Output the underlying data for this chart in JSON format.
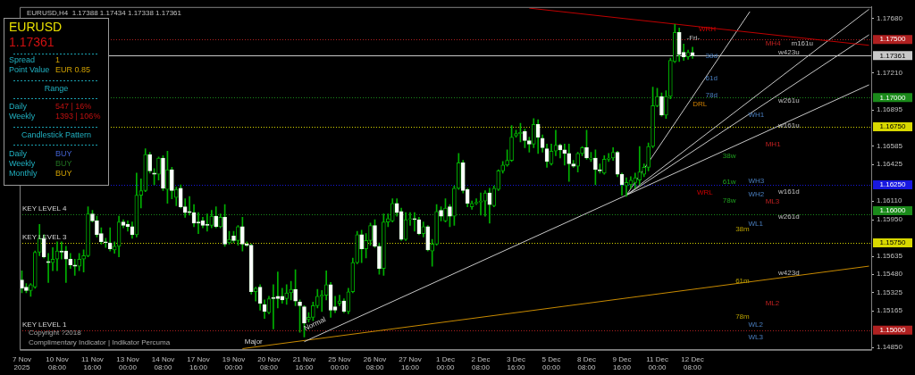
{
  "chart_data": {
    "type": "candlestick",
    "title": "EURUSD,H4  1.17388 1.17434 1.17338 1.17361",
    "categories": [
      "7 Nov 2025",
      null,
      null,
      null,
      null,
      null,
      null,
      null,
      "10 Nov 08:00",
      null,
      null,
      null,
      null,
      null,
      null,
      null,
      "11 Nov 16:00",
      null,
      null,
      null,
      null,
      null,
      null,
      null,
      "13 Nov 00:00",
      null,
      null,
      null,
      null,
      null,
      null,
      null,
      "14 Nov 08:00",
      null,
      null,
      null,
      null,
      null,
      null,
      null,
      "17 Nov 16:00",
      null,
      null,
      null,
      null,
      null,
      null,
      null,
      "19 Nov 00:00",
      null,
      null,
      null,
      null,
      null,
      null,
      null,
      "20 Nov 08:00",
      null,
      null,
      null,
      null,
      null,
      null,
      null,
      "21 Nov 16:00",
      null,
      null,
      null,
      null,
      null,
      null,
      null,
      "25 Nov 00:00",
      null,
      null,
      null,
      null,
      null,
      null,
      null,
      "26 Nov 08:00",
      null,
      null,
      null,
      null,
      null,
      null,
      null,
      "27 Nov 16:00",
      null,
      null,
      null,
      null,
      null,
      null,
      null,
      "1 Dec 00:00",
      null,
      null,
      null,
      null,
      null,
      null,
      null,
      "2 Dec 08:00",
      null,
      null,
      null,
      null,
      null,
      null,
      null,
      "3 Dec 16:00",
      null,
      null,
      null,
      null,
      null,
      null,
      null,
      "5 Dec 00:00",
      null,
      null,
      null,
      null,
      null,
      null,
      null,
      "8 Dec 08:00",
      null,
      null,
      null,
      null,
      null,
      null,
      null,
      "9 Dec 16:00",
      null,
      null,
      null,
      null,
      null,
      null,
      null,
      "11 Dec 00:00",
      null,
      null,
      null,
      null,
      null,
      null,
      null,
      "12 Dec 08:00",
      null,
      null,
      null,
      null,
      null,
      null,
      null,
      null,
      null,
      null,
      null,
      null,
      null,
      null,
      null,
      null,
      null,
      null,
      null,
      null,
      null,
      null,
      null,
      null,
      null,
      null,
      null,
      null,
      null,
      null,
      null,
      null,
      null,
      null,
      null,
      null,
      null,
      null,
      null,
      null
    ],
    "ohlc": [
      [
        1.1543,
        1.1551,
        1.1532,
        1.1536
      ],
      [
        1.1537,
        1.154,
        1.1532,
        1.1534
      ],
      [
        1.1534,
        1.154,
        1.1529,
        1.1539
      ],
      [
        1.1537,
        1.1568,
        1.1536,
        1.1567
      ],
      [
        1.1567,
        1.1591,
        1.1564,
        1.1579
      ],
      [
        1.1579,
        1.1582,
        1.1562,
        1.1563
      ],
      [
        1.1559,
        1.1566,
        1.1541,
        1.1558
      ],
      [
        1.1558,
        1.1571,
        1.1551,
        1.1561
      ],
      [
        1.1561,
        1.1576,
        1.1551,
        1.1568
      ],
      [
        1.1568,
        1.1576,
        1.1561,
        1.1567
      ],
      [
        1.1568,
        1.1572,
        1.1541,
        1.1561
      ],
      [
        1.1561,
        1.1566,
        1.1553,
        1.1556
      ],
      [
        1.1556,
        1.1561,
        1.1547,
        1.1555
      ],
      [
        1.1555,
        1.1566,
        1.1551,
        1.1561
      ],
      [
        1.1561,
        1.1569,
        1.155,
        1.1564
      ],
      [
        1.1564,
        1.1606,
        1.1563,
        1.16
      ],
      [
        1.16,
        1.1603,
        1.1593,
        1.1594
      ],
      [
        1.1594,
        1.1598,
        1.158,
        1.1582
      ],
      [
        1.1583,
        1.1588,
        1.1574,
        1.1576
      ],
      [
        1.1576,
        1.1579,
        1.1571,
        1.1575
      ],
      [
        1.1575,
        1.1588,
        1.1568,
        1.157
      ],
      [
        1.1569,
        1.1576,
        1.1566,
        1.1572
      ],
      [
        1.1572,
        1.1598,
        1.1563,
        1.1593
      ],
      [
        1.1593,
        1.1595,
        1.1588,
        1.159
      ],
      [
        1.1591,
        1.1594,
        1.1585,
        1.1589
      ],
      [
        1.1589,
        1.1593,
        1.1579,
        1.1582
      ],
      [
        1.1582,
        1.1635,
        1.158,
        1.1616
      ],
      [
        1.1616,
        1.163,
        1.1605,
        1.162
      ],
      [
        1.162,
        1.1656,
        1.1619,
        1.1651
      ],
      [
        1.1651,
        1.1653,
        1.1635,
        1.1637
      ],
      [
        1.1635,
        1.1639,
        1.1625,
        1.1634
      ],
      [
        1.1634,
        1.1649,
        1.1629,
        1.1648
      ],
      [
        1.1648,
        1.165,
        1.162,
        1.1622
      ],
      [
        1.1621,
        1.1654,
        1.1609,
        1.1638
      ],
      [
        1.1638,
        1.164,
        1.1613,
        1.162
      ],
      [
        1.1614,
        1.1623,
        1.1607,
        1.1621
      ],
      [
        1.1622,
        1.1625,
        1.1605,
        1.1606
      ],
      [
        1.1606,
        1.1613,
        1.1597,
        1.1601
      ],
      [
        1.1602,
        1.1615,
        1.1599,
        1.1601
      ],
      [
        1.1601,
        1.1608,
        1.1589,
        1.1592
      ],
      [
        1.1593,
        1.1601,
        1.1583,
        1.1592
      ],
      [
        1.1594,
        1.1597,
        1.1588,
        1.159
      ],
      [
        1.1591,
        1.16,
        1.1585,
        1.159
      ],
      [
        1.159,
        1.1603,
        1.1588,
        1.1598
      ],
      [
        1.1598,
        1.1606,
        1.1588,
        1.1589
      ],
      [
        1.1589,
        1.16,
        1.1588,
        1.1597
      ],
      [
        1.1597,
        1.1608,
        1.1572,
        1.1574
      ],
      [
        1.1575,
        1.1585,
        1.1574,
        1.1578
      ],
      [
        1.1581,
        1.1585,
        1.1575,
        1.1577
      ],
      [
        1.1577,
        1.159,
        1.1573,
        1.1589
      ],
      [
        1.1589,
        1.1597,
        1.1568,
        1.1574
      ],
      [
        1.1574,
        1.1576,
        1.1572,
        1.1573
      ],
      [
        1.1573,
        1.1574,
        1.1531,
        1.1533
      ],
      [
        1.1533,
        1.1537,
        1.1525,
        1.1536
      ],
      [
        1.1537,
        1.1539,
        1.1517,
        1.1523
      ],
      [
        1.1522,
        1.1526,
        1.151,
        1.1516
      ],
      [
        1.1515,
        1.1529,
        1.1514,
        1.1527
      ],
      [
        1.1528,
        1.1539,
        1.1501,
        1.1527
      ],
      [
        1.1529,
        1.155,
        1.1519,
        1.1527
      ],
      [
        1.1529,
        1.1536,
        1.1523,
        1.1526
      ],
      [
        1.1527,
        1.1539,
        1.1522,
        1.1532
      ],
      [
        1.1532,
        1.1542,
        1.1526,
        1.1535
      ],
      [
        1.1535,
        1.1552,
        1.1521,
        1.1525
      ],
      [
        1.1524,
        1.1526,
        1.1498,
        1.1521
      ],
      [
        1.152,
        1.1521,
        1.1494,
        1.1506
      ],
      [
        1.1509,
        1.1515,
        1.1507,
        1.1511
      ],
      [
        1.1511,
        1.1524,
        1.1508,
        1.1521
      ],
      [
        1.1521,
        1.1535,
        1.1519,
        1.1529
      ],
      [
        1.1529,
        1.1534,
        1.1516,
        1.153
      ],
      [
        1.153,
        1.1551,
        1.1526,
        1.1539
      ],
      [
        1.1539,
        1.1541,
        1.1511,
        1.1517
      ],
      [
        1.152,
        1.1529,
        1.1515,
        1.1517
      ],
      [
        1.1523,
        1.153,
        1.1521,
        1.1525
      ],
      [
        1.1525,
        1.1527,
        1.1515,
        1.1516
      ],
      [
        1.1516,
        1.1536,
        1.1514,
        1.1533
      ],
      [
        1.1533,
        1.1562,
        1.1532,
        1.1558
      ],
      [
        1.1558,
        1.1585,
        1.1557,
        1.1582
      ],
      [
        1.1582,
        1.1586,
        1.1558,
        1.157
      ],
      [
        1.157,
        1.1583,
        1.1562,
        1.1577
      ],
      [
        1.1577,
        1.1592,
        1.1573,
        1.159
      ],
      [
        1.159,
        1.1595,
        1.1571,
        1.1572
      ],
      [
        1.1572,
        1.1575,
        1.1548,
        1.1553
      ],
      [
        1.1553,
        1.16,
        1.1547,
        1.1593
      ],
      [
        1.1593,
        1.16,
        1.1589,
        1.1596
      ],
      [
        1.1594,
        1.1613,
        1.1593,
        1.1609
      ],
      [
        1.1609,
        1.1613,
        1.1598,
        1.1601
      ],
      [
        1.1602,
        1.1605,
        1.1577,
        1.1578
      ],
      [
        1.1578,
        1.1601,
        1.1577,
        1.1595
      ],
      [
        1.1595,
        1.1601,
        1.159,
        1.1596
      ],
      [
        1.1596,
        1.1601,
        1.1585,
        1.1595
      ],
      [
        1.1595,
        1.1597,
        1.1582,
        1.1583
      ],
      [
        1.1583,
        1.1593,
        1.158,
        1.1589
      ],
      [
        1.1589,
        1.159,
        1.1568,
        1.1569
      ],
      [
        1.1568,
        1.1578,
        1.1555,
        1.1574
      ],
      [
        1.1574,
        1.1608,
        1.1573,
        1.1602
      ],
      [
        1.1603,
        1.1606,
        1.1594,
        1.1598
      ],
      [
        1.1594,
        1.1613,
        1.1593,
        1.1605
      ],
      [
        1.1606,
        1.1608,
        1.1589,
        1.1598
      ],
      [
        1.1598,
        1.1624,
        1.159,
        1.1622
      ],
      [
        1.1622,
        1.1652,
        1.1621,
        1.1644
      ],
      [
        1.1644,
        1.1646,
        1.1618,
        1.162
      ],
      [
        1.1621,
        1.1622,
        1.1606,
        1.1609
      ],
      [
        1.1606,
        1.1611,
        1.1604,
        1.1609
      ],
      [
        1.1609,
        1.1613,
        1.1608,
        1.161
      ],
      [
        1.161,
        1.1618,
        1.1599,
        1.1611
      ],
      [
        1.1611,
        1.162,
        1.1598,
        1.1618
      ],
      [
        1.1618,
        1.1622,
        1.1592,
        1.1608
      ],
      [
        1.1607,
        1.1624,
        1.1606,
        1.1622
      ],
      [
        1.1621,
        1.1638,
        1.162,
        1.1637
      ],
      [
        1.1637,
        1.1645,
        1.1635,
        1.1642
      ],
      [
        1.1642,
        1.1655,
        1.1641,
        1.1646
      ],
      [
        1.1646,
        1.1676,
        1.1645,
        1.1666
      ],
      [
        1.1667,
        1.1672,
        1.1666,
        1.1669
      ],
      [
        1.1669,
        1.1678,
        1.1662,
        1.167
      ],
      [
        1.1671,
        1.1673,
        1.1657,
        1.1663
      ],
      [
        1.1663,
        1.1666,
        1.1653,
        1.166
      ],
      [
        1.166,
        1.1682,
        1.1657,
        1.1677
      ],
      [
        1.1677,
        1.1681,
        1.1652,
        1.1666
      ],
      [
        1.1665,
        1.1668,
        1.1653,
        1.1657
      ],
      [
        1.1656,
        1.166,
        1.164,
        1.1645
      ],
      [
        1.1643,
        1.166,
        1.1642,
        1.1654
      ],
      [
        1.1654,
        1.1672,
        1.165,
        1.1659
      ],
      [
        1.1659,
        1.166,
        1.1648,
        1.1655
      ],
      [
        1.1655,
        1.166,
        1.1642,
        1.1652
      ],
      [
        1.1652,
        1.166,
        1.1628,
        1.1643
      ],
      [
        1.1643,
        1.1646,
        1.164,
        1.1641
      ],
      [
        1.1641,
        1.1653,
        1.1636,
        1.1652
      ],
      [
        1.1652,
        1.1658,
        1.165,
        1.1657
      ],
      [
        1.1657,
        1.1672,
        1.1647,
        1.1648
      ],
      [
        1.1647,
        1.1653,
        1.1645,
        1.1648
      ],
      [
        1.1648,
        1.1655,
        1.1625,
        1.1638
      ],
      [
        1.1638,
        1.1643,
        1.1635,
        1.1637
      ],
      [
        1.1635,
        1.165,
        1.1634,
        1.1647
      ],
      [
        1.1647,
        1.1652,
        1.1645,
        1.1648
      ],
      [
        1.1648,
        1.1657,
        1.1646,
        1.1653
      ],
      [
        1.1653,
        1.1654,
        1.1632,
        1.1634
      ],
      [
        1.1634,
        1.1635,
        1.1616,
        1.1625
      ],
      [
        1.1624,
        1.1631,
        1.1615,
        1.1627
      ],
      [
        1.1625,
        1.1632,
        1.1622,
        1.1629
      ],
      [
        1.1627,
        1.1635,
        1.1622,
        1.1631
      ],
      [
        1.1629,
        1.1658,
        1.1625,
        1.1636
      ],
      [
        1.1634,
        1.1643,
        1.1632,
        1.164
      ],
      [
        1.164,
        1.1661,
        1.1637,
        1.1658
      ],
      [
        1.1658,
        1.1709,
        1.1657,
        1.1693
      ],
      [
        1.1693,
        1.1708,
        1.1692,
        1.1701
      ],
      [
        1.1701,
        1.1704,
        1.1684,
        1.1685
      ],
      [
        1.1685,
        1.1706,
        1.1682,
        1.1701
      ],
      [
        1.1701,
        1.1734,
        1.1699,
        1.1732
      ],
      [
        1.1731,
        1.1763,
        1.173,
        1.1756
      ],
      [
        1.1756,
        1.176,
        1.1731,
        1.1737
      ],
      [
        1.1739,
        1.1746,
        1.1732,
        1.1735
      ],
      [
        1.1735,
        1.1741,
        1.1733,
        1.1739
      ],
      [
        1.17388,
        1.17434,
        1.17338,
        1.17361
      ],
      null,
      null,
      null,
      null,
      null,
      null,
      null,
      null,
      null,
      null,
      null,
      null,
      null,
      null,
      null,
      null,
      null,
      null,
      null,
      null,
      null,
      null,
      null,
      null,
      null,
      null,
      null,
      null,
      null,
      null,
      null,
      null,
      null,
      null,
      null,
      null,
      null,
      null,
      null,
      null
    ],
    "series": [
      {
        "type": "line",
        "color": "#c8c8c8",
        "values": [
          null,
          null,
          null,
          null,
          null,
          null,
          null,
          null,
          null,
          null,
          null,
          null,
          null,
          null,
          null,
          null,
          null,
          null,
          null,
          null,
          null,
          null,
          null,
          null,
          null,
          null,
          null,
          null,
          null,
          null,
          null,
          null,
          null,
          null,
          null,
          null,
          null,
          null,
          null,
          null,
          null,
          null,
          null,
          null,
          null,
          null,
          null,
          null,
          null,
          null,
          null,
          null,
          null,
          null,
          null,
          null,
          null,
          null,
          null,
          null,
          null,
          null,
          null,
          null,
          1.149,
          null,
          null,
          null,
          null,
          null,
          null,
          null,
          null,
          null,
          null,
          null,
          null,
          null,
          null,
          null,
          null,
          null,
          null,
          null,
          null,
          null,
          null,
          null,
          null,
          null,
          null,
          null,
          null,
          null,
          null,
          null,
          null,
          null,
          null,
          null,
          null,
          null,
          null,
          null,
          null,
          null,
          null,
          null,
          null,
          null,
          null,
          null,
          null,
          null,
          null,
          null,
          null,
          null,
          null,
          null,
          null,
          null,
          null,
          null,
          null,
          null,
          null,
          null,
          null,
          null,
          null,
          null,
          null,
          null,
          null,
          null,
          null,
          null,
          null,
          null,
          null,
          null,
          null,
          null,
          null,
          null,
          null,
          null,
          null,
          null,
          null,
          null,
          null,
          null,
          null,
          null,
          null,
          null,
          null,
          null,
          null,
          null,
          null,
          null,
          null,
          null,
          null,
          null,
          null,
          null,
          null,
          null,
          null,
          null,
          null,
          null,
          null,
          null,
          null,
          null,
          null,
          null,
          null,
          null,
          null,
          null,
          null,
          null,
          null,
          null,
          null,
          null,
          1.1711
        ]
      },
      {
        "type": "line",
        "color": "#c88a00",
        "values": [
          null,
          null,
          null,
          null,
          null,
          null,
          null,
          null,
          null,
          null,
          null,
          null,
          null,
          null,
          null,
          null,
          null,
          null,
          null,
          null,
          null,
          null,
          null,
          null,
          null,
          null,
          null,
          null,
          null,
          null,
          null,
          null,
          null,
          null,
          null,
          null,
          null,
          null,
          null,
          null,
          null,
          null,
          null,
          null,
          null,
          null,
          null,
          null,
          null,
          null,
          1.1484,
          null,
          null,
          null,
          null,
          null,
          null,
          null,
          null,
          null,
          null,
          null,
          null,
          null,
          null,
          null,
          null,
          null,
          null,
          null,
          null,
          null,
          null,
          null,
          null,
          null,
          null,
          null,
          null,
          null,
          null,
          null,
          null,
          null,
          null,
          null,
          null,
          null,
          null,
          null,
          null,
          null,
          null,
          null,
          null,
          null,
          null,
          null,
          null,
          null,
          null,
          null,
          null,
          null,
          null,
          null,
          null,
          null,
          null,
          null,
          null,
          null,
          null,
          null,
          null,
          null,
          null,
          null,
          null,
          null,
          null,
          null,
          null,
          null,
          null,
          null,
          null,
          null,
          null,
          null,
          null,
          null,
          null,
          null,
          null,
          null,
          null,
          null,
          null,
          null,
          null,
          null,
          null,
          null,
          null,
          null,
          null,
          null,
          null,
          null,
          null,
          null,
          null,
          null,
          null,
          null,
          null,
          null,
          null,
          null,
          null,
          null,
          null,
          null,
          null,
          null,
          null,
          null,
          null,
          null,
          null,
          null,
          null,
          null,
          null,
          null,
          null,
          null,
          null,
          null,
          null,
          null,
          null,
          null,
          null,
          null,
          null,
          null,
          null,
          null,
          null,
          null,
          1.1555
        ]
      },
      {
        "type": "line",
        "color": "#c00000",
        "values": [
          null,
          null,
          null,
          null,
          null,
          null,
          null,
          null,
          null,
          null,
          null,
          null,
          null,
          null,
          null,
          null,
          null,
          null,
          null,
          null,
          null,
          null,
          null,
          null,
          null,
          null,
          null,
          null,
          null,
          null,
          null,
          null,
          null,
          null,
          null,
          null,
          null,
          null,
          null,
          null,
          null,
          null,
          null,
          null,
          null,
          null,
          null,
          null,
          null,
          null,
          null,
          null,
          null,
          null,
          null,
          null,
          null,
          null,
          null,
          null,
          null,
          null,
          null,
          null,
          null,
          null,
          null,
          null,
          null,
          null,
          null,
          null,
          null,
          null,
          null,
          null,
          null,
          null,
          null,
          null,
          null,
          null,
          null,
          null,
          null,
          null,
          null,
          null,
          null,
          null,
          null,
          null,
          null,
          null,
          null,
          null,
          null,
          null,
          null,
          null,
          null,
          null,
          null,
          null,
          null,
          null,
          null,
          null,
          null,
          null,
          null,
          null,
          null,
          null,
          null,
          1.1777,
          null,
          null,
          null,
          null,
          null,
          null,
          null,
          null,
          null,
          null,
          null,
          null,
          null,
          null,
          null,
          null,
          null,
          null,
          null,
          null,
          null,
          null,
          null,
          null,
          null,
          null,
          null,
          null,
          null,
          null,
          null,
          null,
          null,
          null,
          null,
          null,
          null,
          null,
          null,
          null,
          null,
          null,
          null,
          null,
          null,
          null,
          null,
          null,
          null,
          null,
          null,
          null,
          null,
          null,
          null,
          null,
          null,
          null,
          null,
          null,
          null,
          null,
          null,
          null,
          null,
          null,
          null,
          null,
          null,
          null,
          null,
          null,
          null,
          null,
          null,
          null,
          1.1745
        ]
      },
      {
        "type": "line",
        "color": "#c8c8c8",
        "values": [
          null,
          null,
          null,
          null,
          null,
          null,
          null,
          null,
          null,
          null,
          null,
          null,
          null,
          null,
          null,
          null,
          null,
          null,
          null,
          null,
          null,
          null,
          null,
          null,
          null,
          null,
          null,
          null,
          null,
          null,
          null,
          null,
          null,
          null,
          null,
          null,
          null,
          null,
          null,
          null,
          null,
          null,
          null,
          null,
          null,
          null,
          null,
          null,
          null,
          null,
          null,
          null,
          null,
          null,
          null,
          null,
          null,
          null,
          null,
          null,
          null,
          null,
          null,
          null,
          null,
          null,
          null,
          null,
          null,
          null,
          null,
          null,
          null,
          null,
          null,
          null,
          null,
          null,
          null,
          null,
          null,
          null,
          null,
          null,
          null,
          null,
          null,
          null,
          null,
          null,
          null,
          null,
          null,
          null,
          null,
          null,
          null,
          null,
          null,
          null,
          null,
          null,
          null,
          null,
          null,
          null,
          null,
          null,
          null,
          null,
          null,
          null,
          null,
          null,
          null,
          null,
          null,
          null,
          null,
          null,
          null,
          null,
          null,
          null,
          null,
          null,
          null,
          null,
          null,
          null,
          null,
          null,
          null,
          null,
          null,
          null,
          null,
          1.1616,
          null,
          null,
          null,
          null,
          null,
          null,
          null,
          null,
          null,
          null,
          null,
          null,
          null,
          null,
          null,
          null,
          null,
          null,
          null,
          null,
          null,
          null,
          null,
          null,
          null,
          null,
          null,
          1.1774,
          null,
          null,
          null,
          null,
          null,
          null,
          null,
          null,
          null,
          null,
          null,
          null,
          null,
          null,
          null,
          null,
          null,
          null,
          null,
          null,
          null,
          null,
          null,
          null,
          null,
          null,
          null
        ]
      },
      {
        "type": "line",
        "color": "#c8c8c8",
        "values": [
          null,
          null,
          null,
          null,
          null,
          null,
          null,
          null,
          null,
          null,
          null,
          null,
          null,
          null,
          null,
          null,
          null,
          null,
          null,
          null,
          null,
          null,
          null,
          null,
          null,
          null,
          null,
          null,
          null,
          null,
          null,
          null,
          null,
          null,
          null,
          null,
          null,
          null,
          null,
          null,
          null,
          null,
          null,
          null,
          null,
          null,
          null,
          null,
          null,
          null,
          null,
          null,
          null,
          null,
          null,
          null,
          null,
          null,
          null,
          null,
          null,
          null,
          null,
          null,
          null,
          null,
          null,
          null,
          null,
          null,
          null,
          null,
          null,
          null,
          null,
          null,
          null,
          null,
          null,
          null,
          null,
          null,
          null,
          null,
          null,
          null,
          null,
          null,
          null,
          null,
          null,
          null,
          null,
          null,
          null,
          null,
          null,
          null,
          null,
          null,
          null,
          null,
          null,
          null,
          null,
          null,
          null,
          null,
          null,
          null,
          null,
          null,
          null,
          null,
          null,
          null,
          null,
          null,
          null,
          null,
          null,
          null,
          null,
          null,
          null,
          null,
          null,
          null,
          null,
          null,
          null,
          null,
          null,
          null,
          null,
          null,
          null,
          1.1616,
          null,
          null,
          null,
          null,
          null,
          null,
          null,
          null,
          null,
          null,
          null,
          null,
          null,
          null,
          null,
          null,
          null,
          null,
          null,
          null,
          null,
          null,
          null,
          null,
          null,
          null,
          null,
          null,
          null,
          null,
          null,
          null,
          null,
          null,
          null,
          null,
          null,
          null,
          null,
          null,
          null,
          null,
          null,
          null,
          null,
          null,
          null,
          null,
          null,
          null,
          null,
          null,
          null,
          null,
          1.1776
        ]
      },
      {
        "type": "line",
        "color": "#c8c8c8",
        "values": [
          null,
          null,
          null,
          null,
          null,
          null,
          null,
          null,
          null,
          null,
          null,
          null,
          null,
          null,
          null,
          null,
          null,
          null,
          null,
          null,
          null,
          null,
          null,
          null,
          null,
          null,
          null,
          null,
          null,
          null,
          null,
          null,
          null,
          null,
          null,
          null,
          null,
          null,
          null,
          null,
          null,
          null,
          null,
          null,
          null,
          null,
          null,
          null,
          null,
          null,
          null,
          null,
          null,
          null,
          null,
          null,
          null,
          null,
          null,
          null,
          null,
          null,
          null,
          null,
          null,
          null,
          null,
          null,
          null,
          null,
          null,
          null,
          null,
          null,
          null,
          null,
          null,
          null,
          null,
          null,
          null,
          null,
          null,
          null,
          null,
          null,
          null,
          null,
          null,
          null,
          null,
          null,
          null,
          null,
          null,
          null,
          null,
          null,
          null,
          null,
          null,
          null,
          null,
          null,
          null,
          null,
          null,
          null,
          null,
          null,
          null,
          null,
          null,
          null,
          null,
          null,
          null,
          null,
          null,
          null,
          null,
          null,
          null,
          null,
          null,
          null,
          null,
          null,
          null,
          null,
          null,
          null,
          null,
          null,
          null,
          null,
          null,
          1.1616,
          null,
          null,
          null,
          null,
          null,
          null,
          null,
          null,
          null,
          null,
          null,
          null,
          null,
          null,
          null,
          null,
          null,
          null,
          null,
          null,
          null,
          null,
          null,
          null,
          null,
          null,
          null,
          null,
          null,
          null,
          null,
          null,
          null,
          null,
          null,
          null,
          null,
          null,
          null,
          null,
          null,
          null,
          null,
          null,
          null,
          null,
          null,
          null,
          null,
          null,
          null,
          null,
          null,
          null,
          1.1754
        ]
      }
    ],
    "ylim": [
      1.1483,
      1.1778
    ],
    "yticks": [
      {
        "value": 1.1768,
        "label": "1.17680"
      },
      {
        "value": 1.1721,
        "label": "1.17210"
      },
      {
        "value": 1.16895,
        "label": "1.16895"
      },
      {
        "value": 1.16585,
        "label": "1.16585"
      },
      {
        "value": 1.16425,
        "label": "1.16425"
      },
      {
        "value": 1.1611,
        "label": "1.16110"
      },
      {
        "value": 1.1595,
        "label": "1.15950"
      },
      {
        "value": 1.15635,
        "label": "1.15635"
      },
      {
        "value": 1.1548,
        "label": "1.15480"
      },
      {
        "value": 1.15325,
        "label": "1.15325"
      },
      {
        "value": 1.15165,
        "label": "1.15165"
      },
      {
        "value": 1.1485,
        "label": "1.14850"
      }
    ],
    "ref_lines": [
      {
        "axis": "y",
        "value": 1.175,
        "label": "1.17500",
        "color": "#b02020",
        "line_style": "dotted"
      },
      {
        "axis": "y",
        "value": 1.17361,
        "label": "1.17361",
        "color": "#c8c8c8",
        "line_style": "solid"
      },
      {
        "axis": "y",
        "value": 1.17,
        "label": "1.17000",
        "color": "#1a8a1a",
        "line_style": "dotted"
      },
      {
        "axis": "y",
        "value": 1.1675,
        "label": "1.16750",
        "color": "#d8d800",
        "line_style": "dotted"
      },
      {
        "axis": "y",
        "value": 1.1625,
        "label": "1.16250",
        "color": "#1818e0",
        "line_style": "dotted"
      },
      {
        "axis": "y",
        "value": 1.16,
        "label": "1.16000",
        "color": "#1a8a1a",
        "line_style": "dotted"
      },
      {
        "axis": "y",
        "value": 1.1575,
        "label": "1.15750",
        "color": "#d8d800",
        "line_style": "dotted"
      },
      {
        "axis": "y",
        "value": 1.15,
        "label": "1.15000",
        "color": "#b02020",
        "line_style": "dotted"
      }
    ],
    "annotations": [
      "EURUSD",
      "1.17361",
      "Spread",
      "1",
      "Point Value",
      "EUR 0.85",
      "Range",
      "Daily",
      "547 | 16%",
      "Weekly",
      "1393 | 106%",
      "Candlestick Pattern",
      "Daily",
      "BUY",
      "Weekly",
      "BUY",
      "Monthly",
      "BUY",
      "Copyright ?2018",
      "Complimentary Indicator | Indikator Percuma",
      "WRH",
      "-Fri-",
      "38d",
      "61d",
      "78d",
      "DRL",
      "WH1",
      "38w",
      "61w",
      "78w",
      "WRL",
      "WH3",
      "WH2",
      "WL1",
      "38m",
      "61m",
      "78m",
      "ML2",
      "WL2",
      "WL3",
      "MH4",
      "m161u",
      "w423u",
      "w261u",
      "w161u",
      "MH1",
      "ML3",
      "w161d",
      "w261d",
      "w423d",
      "Major",
      "Normal",
      {
        "text": "KEY LEVEL 4",
        "y": 1.16
      },
      {
        "text": "KEY LEVEL 3",
        "y": 1.1575
      },
      {
        "text": "KEY LEVEL 1",
        "y": 1.15
      }
    ]
  }
}
